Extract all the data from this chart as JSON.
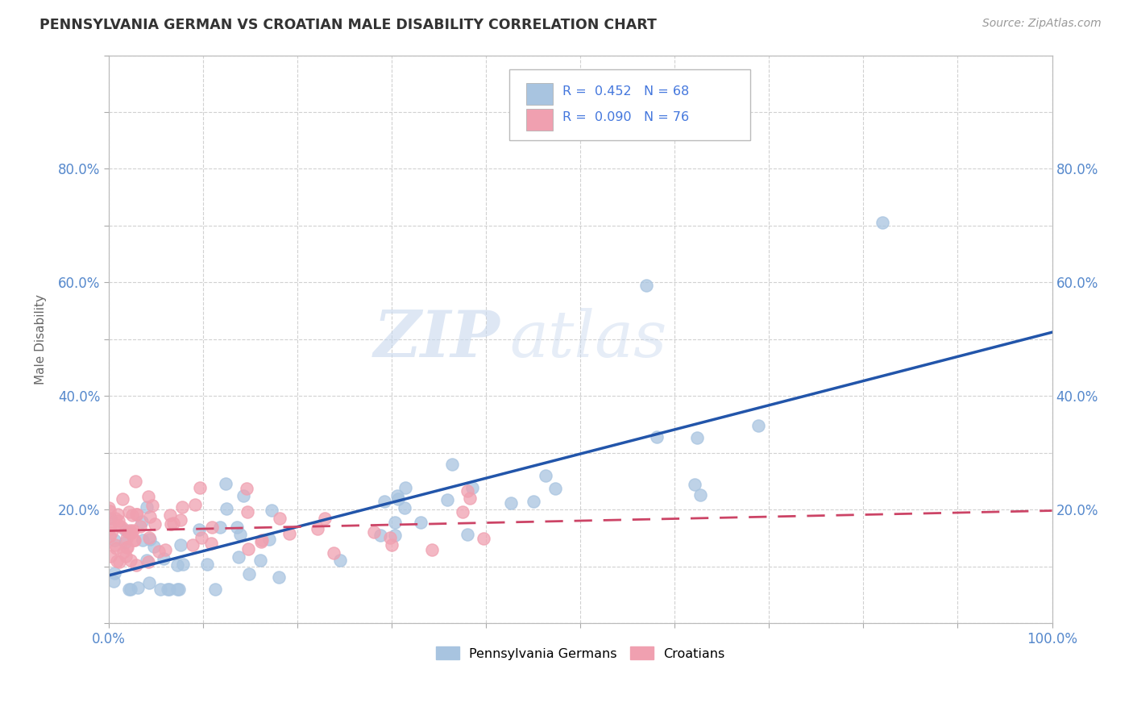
{
  "title": "PENNSYLVANIA GERMAN VS CROATIAN MALE DISABILITY CORRELATION CHART",
  "source": "Source: ZipAtlas.com",
  "ylabel": "Male Disability",
  "xlim": [
    0,
    1.0
  ],
  "ylim": [
    0,
    1.0
  ],
  "pg_color": "#a8c4e0",
  "cr_color": "#f0a0b0",
  "pg_line_color": "#2255aa",
  "cr_line_color": "#cc4466",
  "pg_R": 0.452,
  "pg_N": 68,
  "cr_R": 0.09,
  "cr_N": 76,
  "watermark_zip": "ZIP",
  "watermark_atlas": "atlas",
  "legend_label_pg": "Pennsylvania Germans",
  "legend_label_cr": "Croatians",
  "background_color": "#ffffff",
  "grid_color": "#cccccc",
  "tick_color": "#5588cc",
  "legend_R_color": "#4477dd",
  "legend_text_color": "#333333"
}
